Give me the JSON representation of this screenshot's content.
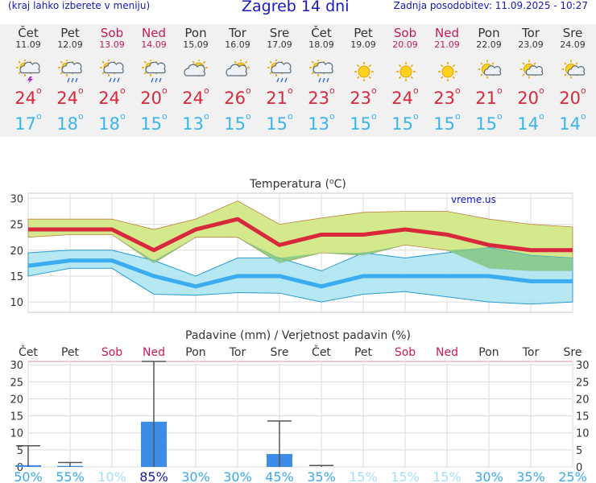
{
  "header": {
    "hint": "(kraj lahko izberete v meniju)",
    "title": "Zagreb 14 dni",
    "updated": "Zadnja posodobitev: 11.09.2025 - 10:27"
  },
  "days": [
    {
      "name": "Čet",
      "date": "11.09",
      "weekend": false,
      "icon": "sun-cloud-storm-icon",
      "max": "24",
      "min": "17"
    },
    {
      "name": "Pet",
      "date": "12.09",
      "weekend": false,
      "icon": "sun-cloud-rain-icon",
      "max": "24",
      "min": "18"
    },
    {
      "name": "Sob",
      "date": "13.09",
      "weekend": true,
      "icon": "sun-cloud-rain-icon",
      "max": "24",
      "min": "18"
    },
    {
      "name": "Ned",
      "date": "14.09",
      "weekend": true,
      "icon": "sun-cloud-rain-icon",
      "max": "20",
      "min": "15"
    },
    {
      "name": "Pon",
      "date": "15.09",
      "weekend": false,
      "icon": "sun-cloud-icon",
      "max": "24",
      "min": "13"
    },
    {
      "name": "Tor",
      "date": "16.09",
      "weekend": false,
      "icon": "sun-cloud-icon",
      "max": "26",
      "min": "15"
    },
    {
      "name": "Sre",
      "date": "17.09",
      "weekend": false,
      "icon": "sun-cloud-rain-icon",
      "max": "21",
      "min": "15"
    },
    {
      "name": "Čet",
      "date": "18.09",
      "weekend": false,
      "icon": "sun-cloud-rain-icon",
      "max": "23",
      "min": "13"
    },
    {
      "name": "Pet",
      "date": "19.09",
      "weekend": false,
      "icon": "sun-icon",
      "max": "23",
      "min": "15"
    },
    {
      "name": "Sob",
      "date": "20.09",
      "weekend": true,
      "icon": "sun-icon",
      "max": "24",
      "min": "15"
    },
    {
      "name": "Ned",
      "date": "21.09",
      "weekend": true,
      "icon": "sun-icon",
      "max": "23",
      "min": "15"
    },
    {
      "name": "Pon",
      "date": "22.09",
      "weekend": false,
      "icon": "sun-small-cloud-icon",
      "max": "21",
      "min": "15"
    },
    {
      "name": "Tor",
      "date": "23.09",
      "weekend": false,
      "icon": "sun-small-cloud-icon",
      "max": "20",
      "min": "14"
    },
    {
      "name": "Sre",
      "date": "24.09",
      "weekend": false,
      "icon": "sun-small-cloud-icon",
      "max": "20",
      "min": "14"
    }
  ],
  "colors": {
    "max": "#d8283c",
    "min": "#3cb4ee",
    "weekend": "#c8185a",
    "max_band": "#d4e88c",
    "min_band": "#a8e4f0",
    "overlap": "#84c884",
    "precip": "#3c8ce8"
  },
  "chart_data": [
    {
      "type": "line",
      "title": "Temperatura (",
      "title_unit": "C",
      "title_end": ")",
      "watermark": "vreme.us",
      "ylim": [
        8,
        31
      ],
      "yticks": [
        10,
        15,
        20,
        25,
        30
      ],
      "grid": true,
      "series": [
        {
          "values": [
            24,
            24,
            24,
            20,
            24,
            26,
            21,
            23,
            23,
            24,
            23,
            21,
            20,
            20
          ]
        },
        {
          "values": [
            17,
            18,
            18,
            15,
            13,
            15,
            15,
            13,
            15,
            15,
            15,
            15,
            14,
            14
          ]
        }
      ],
      "bands": [
        {
          "upper": [
            26,
            26,
            26,
            24,
            26,
            29.5,
            25,
            26.2,
            27.3,
            27.5,
            27.5,
            26,
            25,
            24.5
          ],
          "lower": [
            22.5,
            23,
            23,
            17.5,
            22.5,
            22.5,
            17.5,
            19.5,
            19,
            21,
            20,
            16.5,
            16,
            16
          ]
        },
        {
          "upper": [
            19.5,
            20,
            20,
            18,
            15,
            18.5,
            18.5,
            16,
            19.5,
            18.5,
            19.5,
            20.5,
            19,
            18.5
          ],
          "lower": [
            15,
            16.5,
            16.5,
            11.5,
            11.3,
            11.8,
            11.7,
            10,
            11.5,
            12,
            11,
            10,
            9.6,
            10
          ]
        }
      ]
    },
    {
      "type": "bar",
      "title": "Padavine (mm) / Verjetnost padavin (%)",
      "ylim": [
        0,
        31
      ],
      "yticks": [
        0,
        5,
        10,
        15,
        20,
        25,
        30
      ],
      "grid": true,
      "categories": [
        "Čet",
        "Pet",
        "Sob",
        "Ned",
        "Pon",
        "Tor",
        "Sre",
        "Čet",
        "Pet",
        "Sob",
        "Ned",
        "Pon",
        "Tor",
        "Sre"
      ],
      "weekend": [
        false,
        false,
        true,
        true,
        false,
        false,
        false,
        false,
        false,
        true,
        true,
        false,
        false,
        false
      ],
      "values": [
        0.5,
        0.3,
        0,
        13.3,
        0,
        0,
        3.8,
        0,
        0,
        0,
        0,
        0,
        0,
        0
      ],
      "max_values": [
        6.2,
        1.3,
        0,
        31,
        0,
        0,
        13.5,
        0.4,
        0,
        0,
        0,
        0,
        0,
        0
      ],
      "probability": [
        "50%",
        "55%",
        "10%",
        "85%",
        "30%",
        "30%",
        "45%",
        "35%",
        "15%",
        "15%",
        "15%",
        "30%",
        "35%",
        "25%"
      ]
    }
  ]
}
